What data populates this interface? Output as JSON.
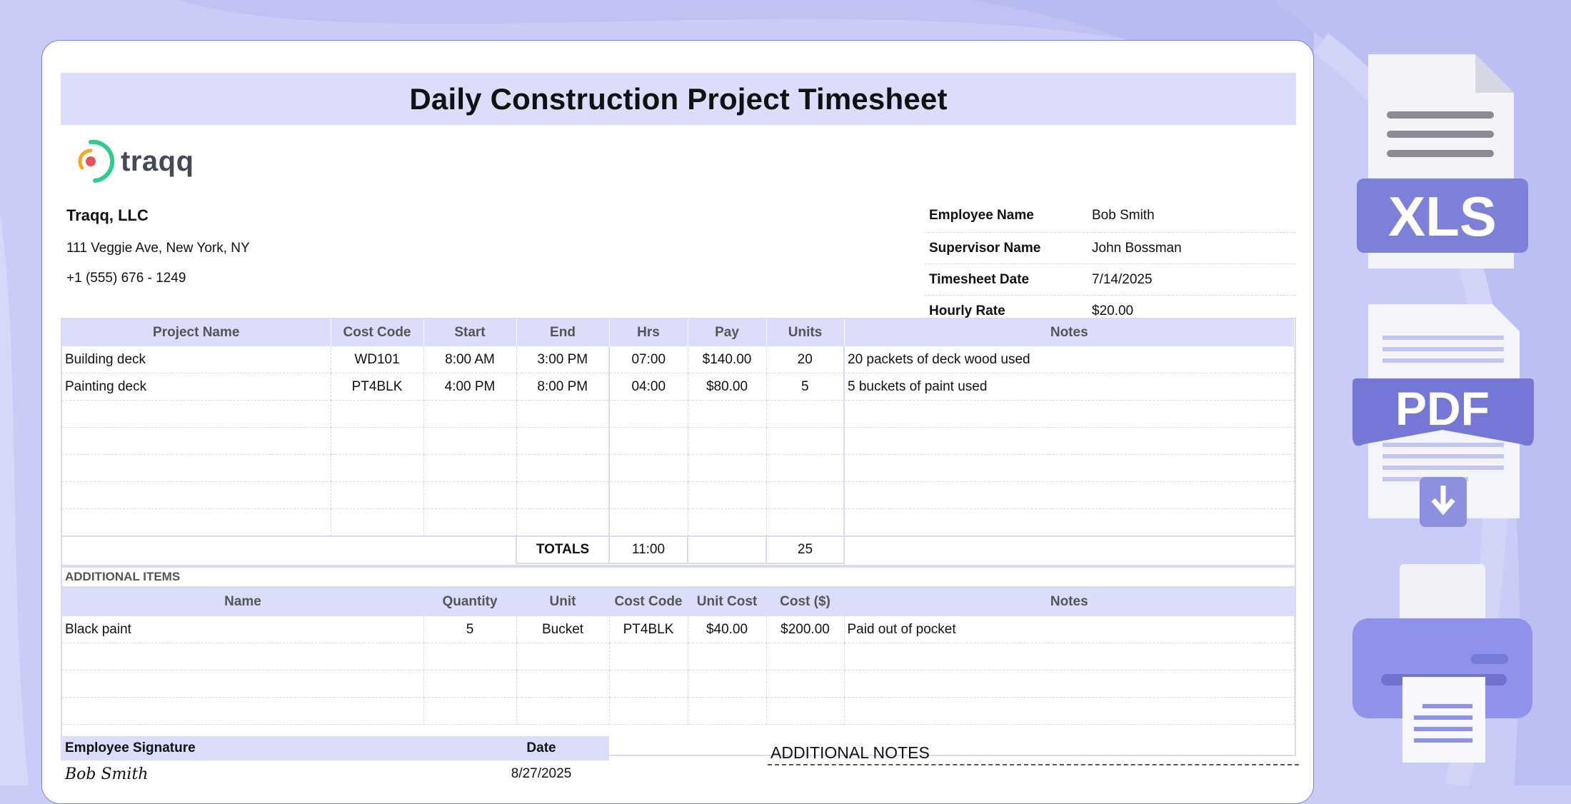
{
  "title": "Daily Construction Project Timesheet",
  "logo_text": "traqq",
  "company": {
    "name": "Traqq, LLC",
    "address": "111 Veggie Ave, New York, NY",
    "phone": "+1 (555) 676 - 1249"
  },
  "info": [
    {
      "label": "Employee Name",
      "value": "Bob Smith"
    },
    {
      "label": "Supervisor Name",
      "value": "John Bossman"
    },
    {
      "label": "Timesheet Date",
      "value": "7/14/2025"
    },
    {
      "label": "Hourly Rate",
      "value": "$20.00"
    }
  ],
  "main_table": {
    "headers": [
      "Project Name",
      "Cost Code",
      "Start",
      "End",
      "Hrs",
      "Pay",
      "Units",
      "Notes"
    ],
    "rows": [
      [
        "Building deck",
        "WD101",
        "8:00 AM",
        "3:00 PM",
        "07:00",
        "$140.00",
        "20",
        "20 packets of deck wood used"
      ],
      [
        "Painting deck",
        "PT4BLK",
        "4:00 PM",
        "8:00 PM",
        "04:00",
        "$80.00",
        "5",
        "5 buckets of paint used"
      ]
    ],
    "totals_label": "TOTALS",
    "totals_hrs": "11:00",
    "totals_pay": "",
    "totals_units": "25"
  },
  "additional": {
    "label": "ADDITIONAL ITEMS",
    "headers": [
      "Name",
      "Quantity",
      "Unit",
      "Cost Code",
      "Unit Cost",
      "Cost ($)",
      "Notes"
    ],
    "rows": [
      [
        "Black paint",
        "5",
        "Bucket",
        "PT4BLK",
        "$40.00",
        "$200.00",
        "Paid out of pocket"
      ]
    ]
  },
  "signature": {
    "label": "Employee Signature",
    "date_label": "Date",
    "name": "Bob Smith",
    "date": "8/27/2025"
  },
  "notes_label": "ADDITIONAL NOTES",
  "side": {
    "xls_label": "XLS",
    "pdf_label": "PDF"
  },
  "colors": {
    "background": "#c9ccf6",
    "header_fill": "#dcddfb",
    "accent": "#7b80d8"
  }
}
